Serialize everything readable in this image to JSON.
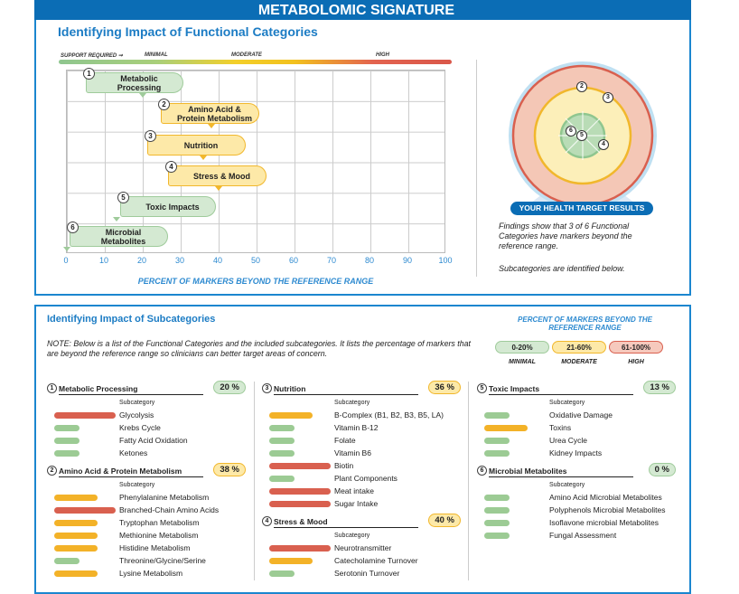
{
  "header": {
    "title": "METABOLOMIC SIGNATURE"
  },
  "functional": {
    "title": "Identifying Impact of Functional Categories",
    "scale_labels": {
      "support": "SUPPORT REQUIRED ➞",
      "minimal": "MINIMAL",
      "moderate": "MODERATE",
      "high": "HIGH"
    },
    "x_ticks": [
      "0",
      "10",
      "20",
      "30",
      "40",
      "50",
      "60",
      "70",
      "80",
      "90",
      "100"
    ],
    "x_label": "PERCENT OF MARKERS BEYOND THE REFERENCE RANGE",
    "categories": [
      {
        "num": "1",
        "label": "Metabolic Processing",
        "value": 20,
        "level": "g"
      },
      {
        "num": "2",
        "label": "Amino Acid & Protein Metabolism",
        "value": 38,
        "level": "y"
      },
      {
        "num": "3",
        "label": "Nutrition",
        "value": 36,
        "level": "y"
      },
      {
        "num": "4",
        "label": "Stress & Mood",
        "value": 40,
        "level": "y"
      },
      {
        "num": "5",
        "label": "Toxic Impacts",
        "value": 13,
        "level": "g"
      },
      {
        "num": "6",
        "label": "Microbial Metabolites",
        "value": 0,
        "level": "g"
      }
    ]
  },
  "target": {
    "markers": [
      "2",
      "3",
      "6",
      "5",
      "4"
    ],
    "banner": "YOUR HEALTH TARGET RESULTS",
    "findings": "Findings show that 3 of 6 Functional Categories have markers beyond the reference range.",
    "note": "Subcategories are identified below."
  },
  "subcategories": {
    "title": "Identifying Impact of Subcategories",
    "note": "NOTE: Below is a list of the Functional Categories and the included subcategories. It lists the percentage of markers that are beyond the reference range so clinicians can better target areas of concern.",
    "legend_title": "PERCENT OF MARKERS BEYOND THE REFERENCE RANGE",
    "legend": [
      {
        "range": "0-20%",
        "label": "MINIMAL"
      },
      {
        "range": "21-60%",
        "label": "MODERATE"
      },
      {
        "range": "61-100%",
        "label": "HIGH"
      }
    ],
    "subheader": "Subcategory",
    "colors": {
      "high": "#d9604f",
      "moderate": "#f3b228",
      "minimal": "#9ccb94"
    },
    "columns": [
      [
        {
          "num": "1",
          "title": "Metabolic Processing",
          "percent": "20 %",
          "level": "g",
          "items": [
            [
              "Glycolysis",
              "high"
            ],
            [
              "Krebs Cycle",
              "minimal"
            ],
            [
              "Fatty Acid Oxidation",
              "minimal"
            ],
            [
              "Ketones",
              "minimal"
            ]
          ]
        },
        {
          "num": "2",
          "title": "Amino Acid & Protein Metabolism",
          "percent": "38 %",
          "level": "y",
          "items": [
            [
              "Phenylalanine Metabolism",
              "moderate"
            ],
            [
              "Branched-Chain Amino Acids",
              "high"
            ],
            [
              "Tryptophan Metabolism",
              "moderate"
            ],
            [
              "Methionine Metabolism",
              "moderate"
            ],
            [
              "Histidine Metabolism",
              "moderate"
            ],
            [
              "Threonine/Glycine/Serine",
              "minimal"
            ],
            [
              "Lysine Metabolism",
              "moderate"
            ]
          ]
        }
      ],
      [
        {
          "num": "3",
          "title": "Nutrition",
          "percent": "36 %",
          "level": "y",
          "items": [
            [
              "B-Complex (B1, B2, B3, B5, LA)",
              "moderate"
            ],
            [
              "Vitamin B-12",
              "minimal"
            ],
            [
              "Folate",
              "minimal"
            ],
            [
              "Vitamin B6",
              "minimal"
            ],
            [
              "Biotin",
              "high"
            ],
            [
              "Plant Components",
              "minimal"
            ],
            [
              "Meat intake",
              "high"
            ],
            [
              "Sugar Intake",
              "high"
            ]
          ]
        },
        {
          "num": "4",
          "title": "Stress & Mood",
          "percent": "40 %",
          "level": "y",
          "items": [
            [
              "Neurotransmitter",
              "high"
            ],
            [
              "Catecholamine Turnover",
              "moderate"
            ],
            [
              "Serotonin Turnover",
              "minimal"
            ]
          ]
        }
      ],
      [
        {
          "num": "5",
          "title": "Toxic Impacts",
          "percent": "13 %",
          "level": "g",
          "items": [
            [
              "Oxidative Damage",
              "minimal"
            ],
            [
              "Toxins",
              "moderate"
            ],
            [
              "Urea Cycle",
              "minimal"
            ],
            [
              "Kidney Impacts",
              "minimal"
            ]
          ]
        },
        {
          "num": "6",
          "title": "Microbial Metabolites",
          "percent": "0 %",
          "level": "g",
          "items": [
            [
              "Amino Acid Microbial Metabolites",
              "minimal"
            ],
            [
              "Polyphenols Microbial Metabolites",
              "minimal"
            ],
            [
              "Isoflavone microbial Metabolites",
              "minimal"
            ],
            [
              "Fungal Assessment",
              "minimal"
            ]
          ]
        }
      ]
    ]
  }
}
